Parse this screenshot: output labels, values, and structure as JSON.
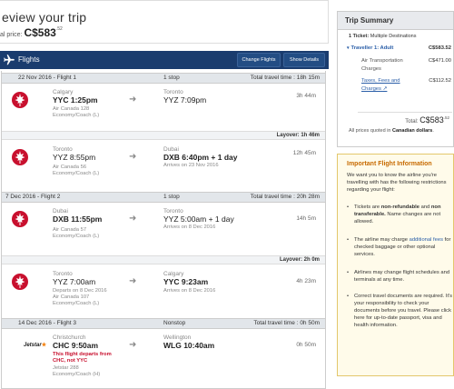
{
  "header": {
    "title": "eview your trip",
    "total_label": "al price:",
    "total_amount": "C$583",
    "total_cents": ".52"
  },
  "flights_bar": {
    "title": "Flights",
    "change_flights_label": "Change Flights",
    "show_details_label": "Show Details"
  },
  "legs": [
    {
      "header_left": "22 Nov 2016 - Flight 1",
      "header_mid": "1 stop",
      "header_right_label": "Total travel time :",
      "header_right_value": "18h 15m",
      "segments": [
        {
          "dep_city": "Calgary",
          "dep_time": "YYC 1:25pm",
          "info": [
            "Air Canada 128",
            "Economy/Coach (L)"
          ],
          "arr_city": "Toronto",
          "arr_time": "YYZ 7:09pm",
          "arr_note": "",
          "duration": "3h 44m"
        },
        {
          "dep_city": "Toronto",
          "dep_time": "YYZ 8:55pm",
          "info": [
            "Air Canada 56",
            "Economy/Coach (L)"
          ],
          "arr_city": "Dubai",
          "arr_time": "DXB 6:40pm + 1 day",
          "arr_note": "Arrives on 23 Nov 2016",
          "duration": "12h 45m"
        }
      ],
      "layover": "Layover: 1h 46m"
    },
    {
      "header_left": "7 Dec 2016 - Flight 2",
      "header_mid": "1 stop",
      "header_right_label": "Total travel time :",
      "header_right_value": "20h 28m",
      "segments": [
        {
          "dep_city": "Dubai",
          "dep_time": "DXB 11:55pm",
          "info": [
            "Air Canada 57",
            "Economy/Coach (L)"
          ],
          "arr_city": "Toronto",
          "arr_time": "YYZ 5:00am + 1 day",
          "arr_note": "Arrives on 8 Dec 2016",
          "duration": "14h 5m"
        },
        {
          "dep_city": "Toronto",
          "dep_time": "YYZ 7:00am",
          "info": [
            "Departs on 8 Dec 2016",
            "Air Canada 107",
            "Economy/Coach (L)"
          ],
          "arr_city": "Calgary",
          "arr_time": "YYC 9:23am",
          "arr_note": "Arrives on 8 Dec 2016",
          "duration": "4h 23m"
        }
      ],
      "layover": "Layover: 2h 0m"
    },
    {
      "header_left": "14 Dec 2016 - Flight 3",
      "header_mid": "Nonstop",
      "header_right_label": "Total travel time :",
      "header_right_value": "0h 50m",
      "segments": [
        {
          "airline_logo_text": "Jetstar",
          "dep_city": "Christchurch",
          "dep_time": "CHC 9:50am",
          "warning": [
            "This flight departs from",
            "CHC, not YYC"
          ],
          "info": [
            "Jetstar 288",
            "Economy/Coach (H)"
          ],
          "arr_city": "Wellington",
          "arr_time": "WLG 10:40am",
          "arr_note": "",
          "duration": "0h 50m"
        }
      ]
    }
  ],
  "trip_summary": {
    "title": "Trip Summary",
    "tickets_label": "1 Ticket:",
    "tickets_value": "Multiple Destinations",
    "traveller_label": "Traveller 1: Adult",
    "traveller_amount": "C$583.52",
    "air_label": "Air Transportation Charges",
    "air_amount": "C$471.00",
    "taxes_label": "Taxes, Fees and Charges",
    "taxes_amount": "C$112.52",
    "total_label": "Total:",
    "total_amount": "C$583",
    "total_cents": ".52",
    "note_prefix": "All prices quoted in",
    "note_bold": "Canadian dollars",
    "note_suffix": "."
  },
  "flight_info": {
    "title": "Important Flight Information",
    "intro": "We want you to know the airline you're travelling with has the following restrictions regarding your flight:",
    "b1_pre": "Tickets are",
    "b1_bold1": "non-refundable",
    "b1_mid": "and",
    "b1_bold2": "non transferable.",
    "b1_post": "Name changes are not allowed.",
    "b2_pre": "The airline may charge",
    "b2_link": "additional fees",
    "b2_post": "for checked baggage or other optional services.",
    "b3": "Airlines may change flight schedules and terminals at any time.",
    "b4": "Correct travel documents are required. It's your responsibility to check your documents before you travel. Please click here for up-to-date passport, visa and health information."
  },
  "colors": {
    "nav_blue": "#1a3c6e",
    "link_blue": "#2a5ea8",
    "aircanada_red": "#c8102e",
    "warning_red": "#c8102e",
    "info_orange": "#c76a00",
    "info_bg": "#fffbea"
  },
  "icons": [
    "plane-icon",
    "air-canada-logo",
    "jetstar-logo",
    "arrow-right-icon",
    "external-link-icon"
  ]
}
